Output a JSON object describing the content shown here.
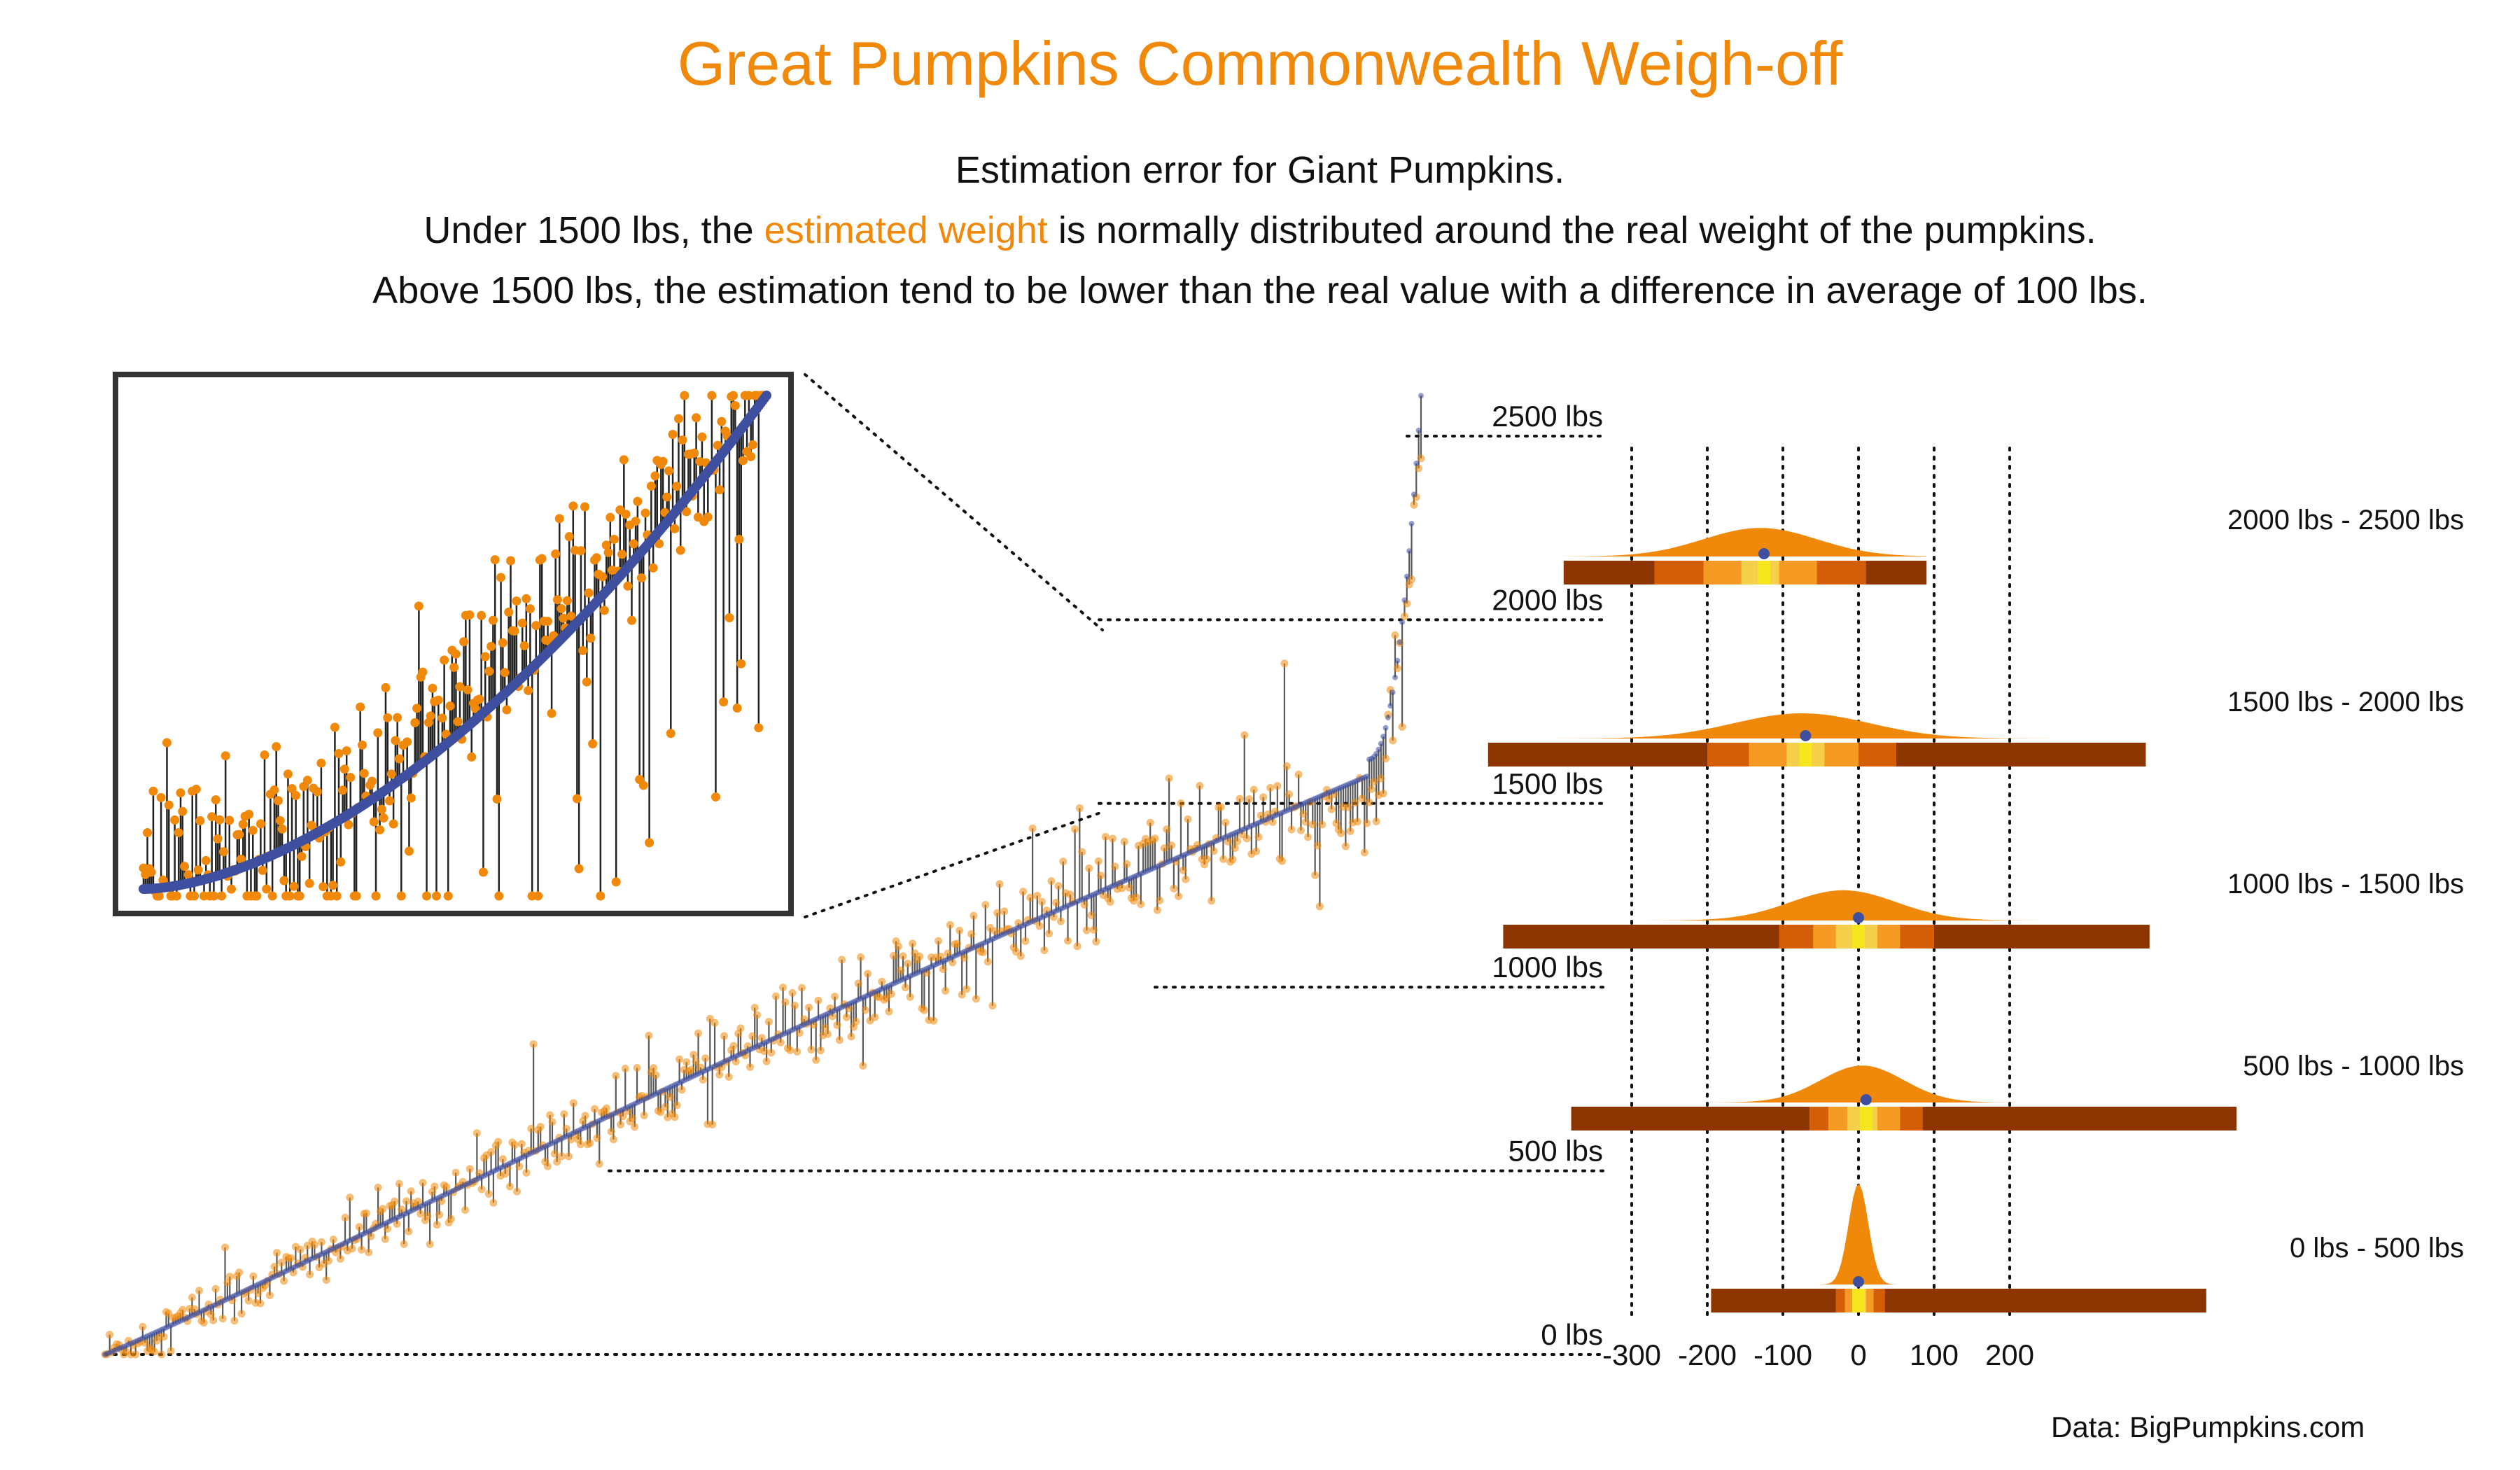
{
  "title": "Great Pumpkins Commonwealth Weigh-off",
  "subtitle": {
    "line1": "Estimation error for Giant Pumpkins.",
    "line2_pre": "Under 1500 lbs, the ",
    "line2_highlight": "estimated weight",
    "line2_post": " is normally distributed around the real weight of the pumpkins.",
    "line3": "Above 1500 lbs, the estimation tend to be lower than the real value with a difference in average of 100 lbs."
  },
  "source": "Data: BigPumpkins.com",
  "colors": {
    "accent": "#F0880A",
    "actual": "#3E4FA0",
    "segment": "#222222",
    "interval_outer": "#8B3500",
    "interval_mid": "#D45E08",
    "interval_inner": "#F59A22",
    "interval_core": "#F3CF4A",
    "median": "#F5E61E"
  },
  "chart_data": [
    {
      "type": "scatter",
      "description_series": [
        "actual weight (blue)",
        "estimated weight (orange)"
      ],
      "y_ticks": [
        {
          "value": 0,
          "label": "0 lbs"
        },
        {
          "value": 500,
          "label": "500 lbs"
        },
        {
          "value": 1000,
          "label": "1000 lbs"
        },
        {
          "value": 1500,
          "label": "1500 lbs"
        },
        {
          "value": 2000,
          "label": "2000 lbs"
        },
        {
          "value": 2500,
          "label": "2500 lbs"
        }
      ],
      "ylim": [
        0,
        2620
      ],
      "n_points": 560,
      "weight_curve": {
        "start": 0,
        "mid": 1500,
        "end": 2600
      },
      "grid": false,
      "inset": {
        "description": "zoom on pumpkins between 1500 and 2000 lbs",
        "range": [
          1500,
          2000
        ]
      }
    },
    {
      "type": "ridgeline",
      "xlim": [
        -320,
        520
      ],
      "x_ticks": [
        -300,
        -200,
        -100,
        0,
        100,
        200
      ],
      "groups": [
        {
          "label": "2000 lbs - 2500 lbs",
          "mean": -130,
          "sd": 75,
          "median": -125,
          "peak": 0.85,
          "interval": [
            -390,
            90
          ],
          "q_outer": [
            -270,
            10
          ],
          "q_mid": [
            -205,
            -55
          ],
          "q_inner": [
            -155,
            -105
          ]
        },
        {
          "label": "1500 lbs - 2000 lbs",
          "mean": -75,
          "sd": 90,
          "median": -70,
          "peak": 0.75,
          "interval": [
            -490,
            380
          ],
          "q_outer": [
            -200,
            50
          ],
          "q_mid": [
            -145,
            0
          ],
          "q_inner": [
            -95,
            -45
          ]
        },
        {
          "label": "1000 lbs - 1500 lbs",
          "mean": -20,
          "sd": 70,
          "median": 0,
          "peak": 0.9,
          "interval": [
            -470,
            385
          ],
          "q_outer": [
            -105,
            100
          ],
          "q_mid": [
            -60,
            55
          ],
          "q_inner": [
            -30,
            25
          ]
        },
        {
          "label": "500 lbs - 1000 lbs",
          "mean": 5,
          "sd": 55,
          "median": 10,
          "peak": 1.1,
          "interval": [
            -380,
            500
          ],
          "q_outer": [
            -65,
            85
          ],
          "q_mid": [
            -40,
            55
          ],
          "q_inner": [
            -15,
            25
          ]
        },
        {
          "label": "0 lbs - 500 lbs",
          "mean": 0,
          "sd": 13,
          "median": 0,
          "peak": 3.0,
          "interval": [
            -195,
            460
          ],
          "q_outer": [
            -30,
            35
          ],
          "q_mid": [
            -18,
            20
          ],
          "q_inner": [
            -8,
            10
          ]
        }
      ]
    }
  ]
}
